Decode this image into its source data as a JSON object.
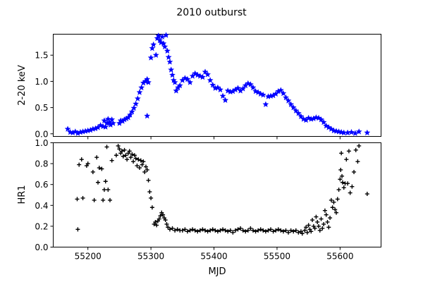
{
  "figure": {
    "title": "2010 outburst"
  },
  "chart_data": [
    {
      "type": "scatter",
      "ylabel": "2-20 keV",
      "xlabel": "",
      "xlim": [
        55145,
        55665
      ],
      "ylim": [
        -0.05,
        1.9
      ],
      "yticks": [
        0.0,
        0.5,
        1.0,
        1.5
      ],
      "ytick_labels": [
        "0.0",
        "0.5",
        "1.0",
        "1.5"
      ],
      "xticks": [
        55200,
        55300,
        55400,
        55500,
        55600
      ],
      "show_xtick_labels": false,
      "marker": "star",
      "color": "#0000ff",
      "grid": false,
      "points": [
        [
          55168,
          0.09
        ],
        [
          55172,
          0.03
        ],
        [
          55176,
          0.02
        ],
        [
          55180,
          0.04
        ],
        [
          55184,
          0.01
        ],
        [
          55188,
          0.03
        ],
        [
          55192,
          0.04
        ],
        [
          55196,
          0.05
        ],
        [
          55200,
          0.06
        ],
        [
          55204,
          0.07
        ],
        [
          55208,
          0.09
        ],
        [
          55212,
          0.1
        ],
        [
          55216,
          0.12
        ],
        [
          55220,
          0.16
        ],
        [
          55224,
          0.14
        ],
        [
          55226,
          0.25
        ],
        [
          55228,
          0.13
        ],
        [
          55230,
          0.2
        ],
        [
          55232,
          0.28
        ],
        [
          55234,
          0.22
        ],
        [
          55236,
          0.17
        ],
        [
          55238,
          0.27
        ],
        [
          55240,
          0.2
        ],
        [
          55250,
          0.2
        ],
        [
          55252,
          0.25
        ],
        [
          55255,
          0.24
        ],
        [
          55258,
          0.27
        ],
        [
          55261,
          0.29
        ],
        [
          55264,
          0.31
        ],
        [
          55267,
          0.36
        ],
        [
          55270,
          0.42
        ],
        [
          55273,
          0.49
        ],
        [
          55276,
          0.57
        ],
        [
          55279,
          0.67
        ],
        [
          55282,
          0.79
        ],
        [
          55285,
          0.88
        ],
        [
          55288,
          0.97
        ],
        [
          55291,
          1.0
        ],
        [
          55294,
          1.04
        ],
        [
          55296,
          0.98
        ],
        [
          55294,
          0.34
        ],
        [
          55300,
          1.45
        ],
        [
          55302,
          1.63
        ],
        [
          55304,
          1.7
        ],
        [
          55308,
          1.5
        ],
        [
          55310,
          1.82
        ],
        [
          55312,
          1.87
        ],
        [
          55314,
          1.78
        ],
        [
          55316,
          1.74
        ],
        [
          55318,
          1.85
        ],
        [
          55320,
          1.72
        ],
        [
          55322,
          1.66
        ],
        [
          55324,
          1.88
        ],
        [
          55326,
          1.58
        ],
        [
          55328,
          1.46
        ],
        [
          55330,
          1.37
        ],
        [
          55332,
          1.22
        ],
        [
          55334,
          1.12
        ],
        [
          55336,
          1.02
        ],
        [
          55338,
          0.98
        ],
        [
          55340,
          0.82
        ],
        [
          55343,
          0.88
        ],
        [
          55346,
          0.92
        ],
        [
          55350,
          1.02
        ],
        [
          55354,
          1.06
        ],
        [
          55358,
          1.04
        ],
        [
          55362,
          0.98
        ],
        [
          55366,
          1.1
        ],
        [
          55370,
          1.15
        ],
        [
          55374,
          1.12
        ],
        [
          55378,
          1.1
        ],
        [
          55382,
          1.08
        ],
        [
          55386,
          1.18
        ],
        [
          55390,
          1.13
        ],
        [
          55394,
          1.02
        ],
        [
          55398,
          0.93
        ],
        [
          55402,
          0.87
        ],
        [
          55406,
          0.88
        ],
        [
          55410,
          0.84
        ],
        [
          55414,
          0.72
        ],
        [
          55418,
          0.64
        ],
        [
          55422,
          0.82
        ],
        [
          55426,
          0.8
        ],
        [
          55430,
          0.81
        ],
        [
          55434,
          0.84
        ],
        [
          55438,
          0.87
        ],
        [
          55442,
          0.82
        ],
        [
          55446,
          0.86
        ],
        [
          55450,
          0.92
        ],
        [
          55454,
          0.96
        ],
        [
          55458,
          0.94
        ],
        [
          55462,
          0.88
        ],
        [
          55466,
          0.81
        ],
        [
          55470,
          0.79
        ],
        [
          55474,
          0.76
        ],
        [
          55478,
          0.74
        ],
        [
          55482,
          0.56
        ],
        [
          55486,
          0.71
        ],
        [
          55490,
          0.72
        ],
        [
          55494,
          0.73
        ],
        [
          55498,
          0.76
        ],
        [
          55502,
          0.81
        ],
        [
          55506,
          0.83
        ],
        [
          55510,
          0.77
        ],
        [
          55514,
          0.69
        ],
        [
          55518,
          0.63
        ],
        [
          55522,
          0.56
        ],
        [
          55526,
          0.5
        ],
        [
          55530,
          0.44
        ],
        [
          55534,
          0.39
        ],
        [
          55538,
          0.33
        ],
        [
          55542,
          0.28
        ],
        [
          55546,
          0.26
        ],
        [
          55550,
          0.3
        ],
        [
          55554,
          0.28
        ],
        [
          55558,
          0.29
        ],
        [
          55562,
          0.31
        ],
        [
          55566,
          0.3
        ],
        [
          55570,
          0.27
        ],
        [
          55574,
          0.22
        ],
        [
          55578,
          0.15
        ],
        [
          55582,
          0.12
        ],
        [
          55586,
          0.09
        ],
        [
          55590,
          0.06
        ],
        [
          55594,
          0.05
        ],
        [
          55598,
          0.04
        ],
        [
          55602,
          0.03
        ],
        [
          55606,
          0.02
        ],
        [
          55612,
          0.02
        ],
        [
          55618,
          0.03
        ],
        [
          55624,
          0.01
        ],
        [
          55630,
          0.04
        ],
        [
          55643,
          0.02
        ]
      ]
    },
    {
      "type": "scatter",
      "ylabel": "HR1",
      "xlabel": "MJD",
      "xlim": [
        55145,
        55665
      ],
      "ylim": [
        0.0,
        1.0
      ],
      "yticks": [
        0.0,
        0.2,
        0.4,
        0.6,
        0.8,
        1.0
      ],
      "ytick_labels": [
        "0.0",
        "0.2",
        "0.4",
        "0.6",
        "0.8",
        "1.0"
      ],
      "xticks": [
        55200,
        55300,
        55400,
        55500,
        55600
      ],
      "xtick_labels": [
        "55200",
        "55300",
        "55400",
        "55500",
        "55600"
      ],
      "show_xtick_labels": true,
      "marker": "plus",
      "color": "#000000",
      "grid": false,
      "points": [
        [
          55183,
          0.46
        ],
        [
          55184,
          0.17
        ],
        [
          55186,
          0.79
        ],
        [
          55190,
          0.84
        ],
        [
          55192,
          0.47
        ],
        [
          55198,
          0.78
        ],
        [
          55200,
          0.8
        ],
        [
          55208,
          0.72
        ],
        [
          55210,
          0.45
        ],
        [
          55214,
          0.86
        ],
        [
          55216,
          0.62
        ],
        [
          55218,
          0.76
        ],
        [
          55222,
          0.75
        ],
        [
          55224,
          0.45
        ],
        [
          55226,
          0.55
        ],
        [
          55228,
          0.63
        ],
        [
          55230,
          0.96
        ],
        [
          55232,
          0.55
        ],
        [
          55235,
          0.45
        ],
        [
          55238,
          0.83
        ],
        [
          55245,
          0.88
        ],
        [
          55248,
          0.97
        ],
        [
          55250,
          0.94
        ],
        [
          55252,
          0.9
        ],
        [
          55254,
          0.92
        ],
        [
          55256,
          0.87
        ],
        [
          55258,
          0.93
        ],
        [
          55260,
          0.88
        ],
        [
          55262,
          0.84
        ],
        [
          55264,
          0.9
        ],
        [
          55266,
          0.92
        ],
        [
          55268,
          0.86
        ],
        [
          55270,
          0.89
        ],
        [
          55272,
          0.82
        ],
        [
          55274,
          0.88
        ],
        [
          55276,
          0.85
        ],
        [
          55278,
          0.78
        ],
        [
          55280,
          0.84
        ],
        [
          55282,
          0.76
        ],
        [
          55284,
          0.83
        ],
        [
          55286,
          0.79
        ],
        [
          55288,
          0.82
        ],
        [
          55290,
          0.72
        ],
        [
          55292,
          0.77
        ],
        [
          55294,
          0.74
        ],
        [
          55296,
          0.64
        ],
        [
          55298,
          0.53
        ],
        [
          55300,
          0.47
        ],
        [
          55302,
          0.38
        ],
        [
          55305,
          0.22
        ],
        [
          55307,
          0.24
        ],
        [
          55309,
          0.21
        ],
        [
          55311,
          0.25
        ],
        [
          55313,
          0.27
        ],
        [
          55315,
          0.3
        ],
        [
          55317,
          0.33
        ],
        [
          55319,
          0.31
        ],
        [
          55321,
          0.28
        ],
        [
          55323,
          0.26
        ],
        [
          55325,
          0.22
        ],
        [
          55327,
          0.19
        ],
        [
          55330,
          0.17
        ],
        [
          55334,
          0.18
        ],
        [
          55338,
          0.16
        ],
        [
          55342,
          0.17
        ],
        [
          55346,
          0.16
        ],
        [
          55350,
          0.16
        ],
        [
          55354,
          0.17
        ],
        [
          55358,
          0.15
        ],
        [
          55362,
          0.16
        ],
        [
          55366,
          0.17
        ],
        [
          55370,
          0.16
        ],
        [
          55374,
          0.15
        ],
        [
          55378,
          0.16
        ],
        [
          55382,
          0.17
        ],
        [
          55386,
          0.16
        ],
        [
          55390,
          0.15
        ],
        [
          55394,
          0.16
        ],
        [
          55398,
          0.17
        ],
        [
          55402,
          0.16
        ],
        [
          55406,
          0.15
        ],
        [
          55410,
          0.16
        ],
        [
          55414,
          0.17
        ],
        [
          55418,
          0.16
        ],
        [
          55422,
          0.15
        ],
        [
          55426,
          0.16
        ],
        [
          55430,
          0.14
        ],
        [
          55434,
          0.16
        ],
        [
          55438,
          0.17
        ],
        [
          55442,
          0.18
        ],
        [
          55446,
          0.16
        ],
        [
          55450,
          0.15
        ],
        [
          55454,
          0.16
        ],
        [
          55458,
          0.18
        ],
        [
          55462,
          0.16
        ],
        [
          55466,
          0.15
        ],
        [
          55470,
          0.16
        ],
        [
          55474,
          0.17
        ],
        [
          55478,
          0.16
        ],
        [
          55482,
          0.15
        ],
        [
          55486,
          0.16
        ],
        [
          55490,
          0.17
        ],
        [
          55494,
          0.15
        ],
        [
          55498,
          0.16
        ],
        [
          55502,
          0.17
        ],
        [
          55506,
          0.16
        ],
        [
          55510,
          0.15
        ],
        [
          55514,
          0.16
        ],
        [
          55518,
          0.14
        ],
        [
          55522,
          0.16
        ],
        [
          55526,
          0.15
        ],
        [
          55530,
          0.16
        ],
        [
          55534,
          0.14
        ],
        [
          55538,
          0.15
        ],
        [
          55540,
          0.13
        ],
        [
          55544,
          0.16
        ],
        [
          55546,
          0.19
        ],
        [
          55548,
          0.14
        ],
        [
          55550,
          0.21
        ],
        [
          55552,
          0.17
        ],
        [
          55554,
          0.15
        ],
        [
          55556,
          0.26
        ],
        [
          55558,
          0.2
        ],
        [
          55560,
          0.18
        ],
        [
          55562,
          0.29
        ],
        [
          55564,
          0.24
        ],
        [
          55566,
          0.2
        ],
        [
          55568,
          0.16
        ],
        [
          55570,
          0.27
        ],
        [
          55572,
          0.18
        ],
        [
          55574,
          0.22
        ],
        [
          55576,
          0.35
        ],
        [
          55578,
          0.31
        ],
        [
          55580,
          0.24
        ],
        [
          55582,
          0.19
        ],
        [
          55584,
          0.28
        ],
        [
          55586,
          0.45
        ],
        [
          55588,
          0.38
        ],
        [
          55590,
          0.43
        ],
        [
          55592,
          0.36
        ],
        [
          55594,
          0.33
        ],
        [
          55596,
          0.46
        ],
        [
          55598,
          0.55
        ],
        [
          55600,
          0.65
        ],
        [
          55601,
          0.74
        ],
        [
          55602,
          0.9
        ],
        [
          55603,
          0.68
        ],
        [
          55604,
          0.62
        ],
        [
          55606,
          0.57
        ],
        [
          55608,
          0.61
        ],
        [
          55610,
          0.84
        ],
        [
          55612,
          0.61
        ],
        [
          55614,
          0.92
        ],
        [
          55616,
          0.52
        ],
        [
          55619,
          0.58
        ],
        [
          55622,
          0.72
        ],
        [
          55625,
          0.93
        ],
        [
          55628,
          0.82
        ],
        [
          55630,
          0.97
        ],
        [
          55643,
          0.51
        ]
      ]
    }
  ]
}
